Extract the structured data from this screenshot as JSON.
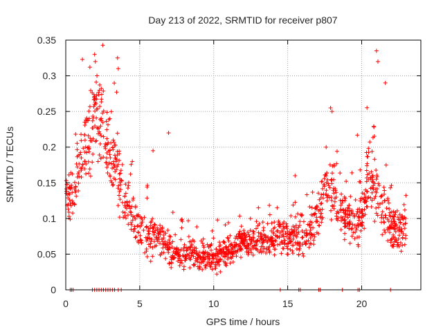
{
  "chart_data": {
    "type": "scatter",
    "title": "Day 213 of 2022, SRMTID for receiver p807",
    "xlabel": "GPS time / hours",
    "ylabel": "SRMTID / TECUs",
    "xlim": [
      0,
      24
    ],
    "ylim": [
      0,
      0.35
    ],
    "grid": true,
    "marker": "+",
    "color": "#ff0000",
    "xticks": [
      0,
      5,
      10,
      15,
      20
    ],
    "yticks": [
      0,
      0.05,
      0.1,
      0.15,
      0.2,
      0.25,
      0.3,
      0.35
    ],
    "xtick_labels": [
      "0",
      "5",
      "10",
      "15",
      "20"
    ],
    "ytick_labels": [
      "0",
      "0.05",
      "0.1",
      "0.15",
      "0.2",
      "0.25",
      "0.3",
      "0.35"
    ],
    "zero_points_x": [
      0.3,
      0.4,
      0.5,
      1.8,
      1.95,
      2.1,
      2.25,
      2.4,
      2.55,
      2.7,
      2.85,
      3.0,
      3.15,
      3.3,
      3.55,
      3.75,
      14.5,
      15.75,
      15.85,
      17.1,
      17.2,
      18.7,
      19.75,
      19.85,
      21.95
    ],
    "envelope": [
      [
        0.0,
        0.14
      ],
      [
        0.5,
        0.12
      ],
      [
        1.0,
        0.18
      ],
      [
        1.5,
        0.21
      ],
      [
        2.0,
        0.25
      ],
      [
        2.5,
        0.23
      ],
      [
        3.0,
        0.19
      ],
      [
        3.5,
        0.17
      ],
      [
        4.0,
        0.12
      ],
      [
        4.5,
        0.11
      ],
      [
        5.0,
        0.08
      ],
      [
        5.5,
        0.07
      ],
      [
        6.0,
        0.075
      ],
      [
        6.5,
        0.07
      ],
      [
        7.0,
        0.055
      ],
      [
        7.5,
        0.05
      ],
      [
        8.0,
        0.048
      ],
      [
        8.5,
        0.052
      ],
      [
        9.0,
        0.045
      ],
      [
        9.5,
        0.045
      ],
      [
        10.0,
        0.042
      ],
      [
        10.5,
        0.048
      ],
      [
        11.0,
        0.055
      ],
      [
        11.5,
        0.065
      ],
      [
        12.0,
        0.07
      ],
      [
        12.5,
        0.068
      ],
      [
        13.0,
        0.07
      ],
      [
        13.5,
        0.072
      ],
      [
        14.0,
        0.072
      ],
      [
        14.5,
        0.075
      ],
      [
        15.0,
        0.07
      ],
      [
        15.5,
        0.08
      ],
      [
        16.0,
        0.075
      ],
      [
        16.5,
        0.08
      ],
      [
        17.0,
        0.1
      ],
      [
        17.5,
        0.14
      ],
      [
        18.0,
        0.14
      ],
      [
        18.5,
        0.11
      ],
      [
        19.0,
        0.1
      ],
      [
        19.5,
        0.09
      ],
      [
        20.0,
        0.11
      ],
      [
        20.5,
        0.16
      ],
      [
        21.0,
        0.14
      ],
      [
        21.5,
        0.11
      ],
      [
        22.0,
        0.09
      ],
      [
        22.5,
        0.085
      ],
      [
        23.0,
        0.09
      ]
    ],
    "spread": [
      [
        0.0,
        0.03
      ],
      [
        1.0,
        0.05
      ],
      [
        2.0,
        0.06
      ],
      [
        3.0,
        0.05
      ],
      [
        4.0,
        0.04
      ],
      [
        5.0,
        0.03
      ],
      [
        7.0,
        0.022
      ],
      [
        10.0,
        0.02
      ],
      [
        13.0,
        0.025
      ],
      [
        15.0,
        0.025
      ],
      [
        17.0,
        0.035
      ],
      [
        18.0,
        0.045
      ],
      [
        19.0,
        0.03
      ],
      [
        20.5,
        0.05
      ],
      [
        22.0,
        0.03
      ],
      [
        23.0,
        0.03
      ]
    ],
    "n_points": 1500,
    "spikes": [
      [
        1.95,
        0.33
      ],
      [
        2.0,
        0.32
      ],
      [
        3.5,
        0.325
      ],
      [
        3.55,
        0.31
      ],
      [
        21.0,
        0.335
      ],
      [
        21.1,
        0.32
      ],
      [
        21.6,
        0.29
      ],
      [
        17.9,
        0.255
      ],
      [
        18.0,
        0.25
      ],
      [
        6.95,
        0.22
      ],
      [
        5.9,
        0.195
      ],
      [
        4.5,
        0.18
      ],
      [
        17.6,
        0.2
      ],
      [
        15.5,
        0.16
      ]
    ]
  }
}
